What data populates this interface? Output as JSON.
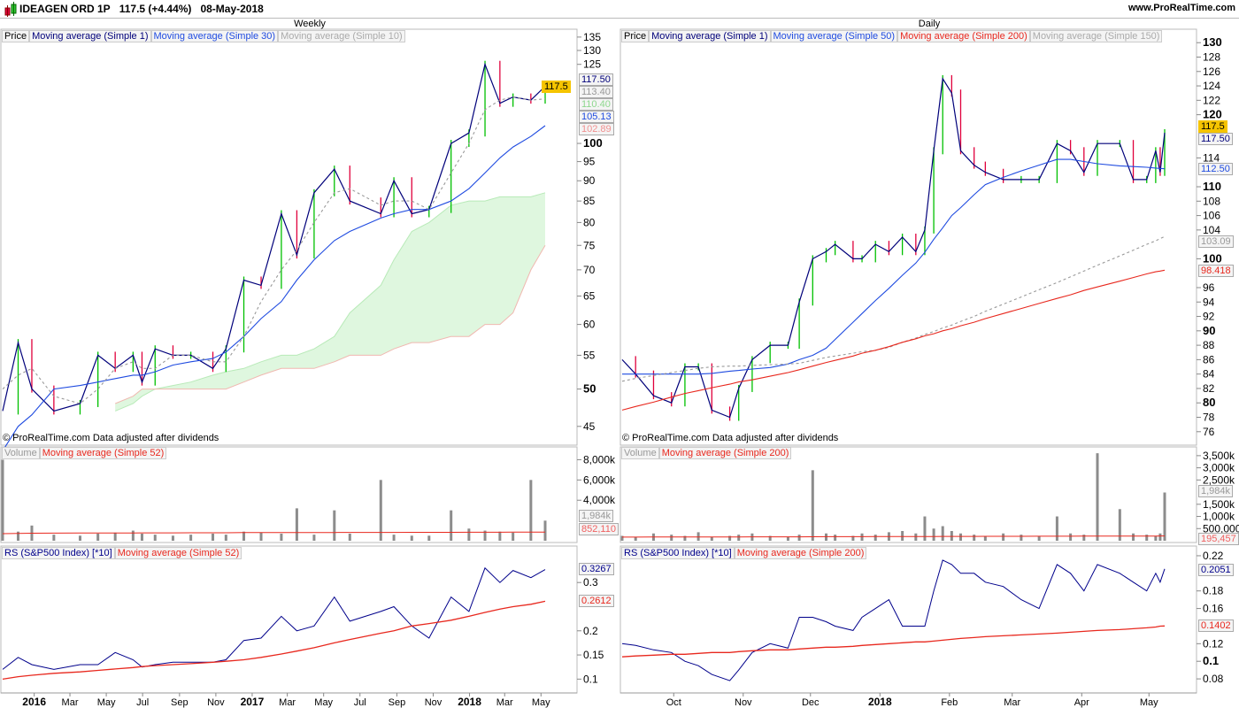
{
  "header": {
    "title": "IDEAGEN ORD 1P",
    "price": "117.5 (+4.44%)",
    "date": "08-May-2018",
    "site": "www.ProRealTime.com",
    "icon": "candlestick-icon"
  },
  "colors": {
    "up": "#00c000",
    "down": "#e0003c",
    "ma1": "#00007a",
    "ma_blue": "#1f4be0",
    "ma_gray": "#999999",
    "ma_red": "#e8281e",
    "cloud": "#dff7df",
    "volume": "#8c8c8c",
    "rs": "#00008b",
    "last": "#f5c400"
  },
  "copyright": "© ProRealTime.com  Data adjusted after dividends",
  "weekly": {
    "title": "Weekly",
    "legend": [
      "Price",
      "Moving average (Simple 1)",
      "Moving average (Simple 30)",
      "Moving average (Simple 10)"
    ],
    "vol_legend": [
      "Volume",
      "Moving average (Simple 52)"
    ],
    "rs_legend": [
      "RS (S&P500 Index) [*10]",
      "Moving average (Simple 52)"
    ],
    "tags": {
      "last": "117.5",
      "ma1": "117.50",
      "ma10": "113.40",
      "cloud_a": "110.40",
      "ma30": "105.13",
      "cloud_b": "102.89",
      "vol": "1,984k",
      "vol_ma": "852,110",
      "rs": "0.3267",
      "rs_ma": "0.2612"
    },
    "price_ticks": [
      "135",
      "130",
      "125",
      "100",
      "95",
      "90",
      "85",
      "80",
      "75",
      "70",
      "65",
      "60",
      "55",
      "50",
      "45"
    ],
    "vol_ticks": [
      "8,000k",
      "6,000k",
      "4,000k"
    ],
    "rs_ticks": [
      "0.3",
      "0.2",
      "0.15",
      "0.1"
    ],
    "x_ticks": [
      [
        "2016-01-01",
        "2016"
      ],
      [
        "2016-03-01",
        "Mar"
      ],
      [
        "2016-05-01",
        "May"
      ],
      [
        "2016-07-01",
        "Jul"
      ],
      [
        "2016-09-01",
        "Sep"
      ],
      [
        "2016-11-01",
        "Nov"
      ],
      [
        "2017-01-01",
        "2017"
      ],
      [
        "2017-03-01",
        "Mar"
      ],
      [
        "2017-05-01",
        "May"
      ],
      [
        "2017-07-01",
        "Jul"
      ],
      [
        "2017-09-01",
        "Sep"
      ],
      [
        "2017-11-01",
        "Nov"
      ],
      [
        "2018-01-01",
        "2018"
      ],
      [
        "2018-03-01",
        "Mar"
      ],
      [
        "2018-05-01",
        "May"
      ]
    ]
  },
  "daily": {
    "title": "Daily",
    "legend": [
      "Price",
      "Moving average (Simple 1)",
      "Moving average (Simple 50)",
      "Moving average (Simple 200)",
      "Moving average (Simple 150)"
    ],
    "vol_legend": [
      "Volume",
      "Moving average (Simple 200)"
    ],
    "rs_legend": [
      "RS (S&P500 Index) [*10]",
      "Moving average (Simple 200)"
    ],
    "tags": {
      "last": "117.5",
      "ma1": "117.50",
      "ma50": "112.50",
      "ma150": "103.09",
      "ma200": "98.418",
      "vol": "1,984k",
      "vol_ma": "195,457",
      "rs": "0.2051",
      "rs_ma": "0.1402"
    },
    "price_ticks": [
      "130",
      "128",
      "126",
      "124",
      "122",
      "120",
      "114",
      "110",
      "108",
      "106",
      "104",
      "100",
      "96",
      "94",
      "92",
      "90",
      "88",
      "86",
      "84",
      "82",
      "80",
      "78",
      "76"
    ],
    "vol_ticks": [
      "3,500k",
      "3,000k",
      "2,500k",
      "1,500k",
      "1,000k",
      "500,000"
    ],
    "rs_ticks": [
      "0.22",
      "0.18",
      "0.16",
      "0.12",
      "0.1",
      "0.08"
    ],
    "x_ticks": [
      [
        "2017-10-01",
        "Oct"
      ],
      [
        "2017-11-01",
        "Nov"
      ],
      [
        "2017-12-01",
        "Dec"
      ],
      [
        "2018-01-01",
        "2018"
      ],
      [
        "2018-02-01",
        "Feb"
      ],
      [
        "2018-03-01",
        "Mar"
      ],
      [
        "2018-04-01",
        "Apr"
      ],
      [
        "2018-05-01",
        "May"
      ]
    ]
  },
  "chart_data": [
    {
      "type": "line",
      "title": "Weekly",
      "price_scale": "log",
      "ylim": [
        43,
        137
      ],
      "x": [
        "2015-11-09",
        "2015-12-05",
        "2015-12-28",
        "2016-02-03",
        "2016-03-18",
        "2016-04-17",
        "2016-05-16",
        "2016-06-15",
        "2016-06-30",
        "2016-07-22",
        "2016-08-21",
        "2016-09-20",
        "2016-10-27",
        "2016-11-18",
        "2016-12-18",
        "2017-01-16",
        "2017-02-19",
        "2017-03-17",
        "2017-04-15",
        "2017-05-19",
        "2017-06-14",
        "2017-08-05",
        "2017-08-27",
        "2017-09-26",
        "2017-10-25",
        "2017-12-01",
        "2017-12-31",
        "2018-01-27",
        "2018-02-21",
        "2018-03-15",
        "2018-04-14",
        "2018-05-08"
      ],
      "series": [
        {
          "name": "Moving average (Simple 1)",
          "values": [
            47,
            57,
            50,
            47,
            48,
            55,
            53,
            55,
            51,
            56,
            55,
            55,
            53,
            56,
            68,
            67,
            82,
            73,
            87,
            93,
            85,
            82,
            90,
            82,
            83,
            100,
            103,
            125,
            112,
            114,
            113,
            117.5
          ]
        },
        {
          "name": "Moving average (Simple 30)",
          "values": [
            42,
            45,
            46.5,
            50,
            50.5,
            51,
            51.5,
            52,
            52,
            52.5,
            53.5,
            54,
            54.5,
            55.5,
            58,
            61,
            64,
            68,
            72,
            76,
            78,
            81,
            82,
            83,
            83,
            85,
            88,
            92,
            96,
            99,
            102,
            105.13
          ]
        },
        {
          "name": "Moving average (Simple 10)",
          "values": [
            50,
            52,
            53,
            49,
            48,
            50,
            53,
            54,
            53,
            53,
            55,
            55,
            54,
            54,
            58,
            64,
            70,
            74,
            80,
            87,
            88,
            84,
            85,
            85,
            83,
            92,
            100,
            110,
            113,
            114,
            113,
            113.4
          ]
        }
      ],
      "cloud_upper": [
        null,
        null,
        null,
        null,
        null,
        null,
        47,
        48,
        49,
        50,
        50.5,
        51,
        52,
        52.5,
        53,
        54,
        55,
        55,
        56,
        58,
        62,
        67,
        72,
        78,
        80,
        84,
        85,
        85,
        86,
        86,
        86,
        87
      ],
      "cloud_lower": [
        null,
        null,
        null,
        null,
        null,
        null,
        48,
        49,
        50,
        50,
        50,
        50,
        50,
        50,
        51,
        52,
        53,
        53,
        53,
        54,
        55,
        55,
        56,
        57,
        57,
        58,
        58,
        60,
        60,
        62,
        70,
        75
      ],
      "volume": {
        "ylim": [
          0,
          9000000
        ],
        "values": [
          8000000,
          900000,
          1500000,
          600000,
          500000,
          700000,
          800000,
          1000000,
          700000,
          600000,
          500000,
          600000,
          700000,
          600000,
          900000,
          800000,
          700000,
          3200000,
          600000,
          3000000,
          700000,
          6000000,
          600000,
          500000,
          500000,
          3000000,
          1200000,
          1000000,
          900000,
          800000,
          6000000,
          1984000
        ],
        "ma": [
          700000,
          720000,
          740000,
          750000,
          760000,
          760000,
          770000,
          770000,
          780000,
          780000,
          780000,
          790000,
          790000,
          790000,
          800000,
          800000,
          800000,
          810000,
          810000,
          810000,
          820000,
          820000,
          820000,
          830000,
          830000,
          830000,
          840000,
          840000,
          840000,
          850000,
          850000,
          852110
        ]
      },
      "rs": {
        "ylim": [
          0.075,
          0.37
        ],
        "values": [
          0.12,
          0.145,
          0.13,
          0.12,
          0.13,
          0.13,
          0.155,
          0.14,
          0.125,
          0.13,
          0.135,
          0.135,
          0.135,
          0.14,
          0.18,
          0.185,
          0.23,
          0.2,
          0.21,
          0.27,
          0.22,
          0.24,
          0.25,
          0.21,
          0.185,
          0.27,
          0.24,
          0.33,
          0.3,
          0.325,
          0.31,
          0.3267
        ],
        "ma": [
          0.1,
          0.105,
          0.108,
          0.112,
          0.115,
          0.118,
          0.121,
          0.124,
          0.126,
          0.128,
          0.13,
          0.132,
          0.135,
          0.137,
          0.14,
          0.145,
          0.152,
          0.158,
          0.165,
          0.175,
          0.182,
          0.195,
          0.2,
          0.21,
          0.215,
          0.222,
          0.23,
          0.238,
          0.245,
          0.25,
          0.255,
          0.2612
        ]
      }
    },
    {
      "type": "line",
      "title": "Daily",
      "price_scale": "linear",
      "ylim": [
        74.5,
        131.5
      ],
      "x": [
        "2017-09-08",
        "2017-09-14",
        "2017-09-22",
        "2017-09-30",
        "2017-10-06",
        "2017-10-12",
        "2017-10-18",
        "2017-10-26",
        "2017-10-30",
        "2017-11-05",
        "2017-11-13",
        "2017-11-21",
        "2017-11-26",
        "2017-12-02",
        "2017-12-08",
        "2017-12-12",
        "2017-12-20",
        "2017-12-24",
        "2017-12-30",
        "2018-01-05",
        "2018-01-11",
        "2018-01-17",
        "2018-01-21",
        "2018-01-25",
        "2018-01-29",
        "2018-02-02",
        "2018-02-06",
        "2018-02-12",
        "2018-02-17",
        "2018-02-25",
        "2018-03-05",
        "2018-03-13",
        "2018-03-21",
        "2018-03-27",
        "2018-04-02",
        "2018-04-08",
        "2018-04-18",
        "2018-04-24",
        "2018-04-30",
        "2018-05-04",
        "2018-05-06",
        "2018-05-08"
      ],
      "series": [
        {
          "name": "Moving average (Simple 1)",
          "values": [
            86,
            84,
            81,
            80,
            85,
            85,
            79,
            78,
            82,
            86,
            88,
            88,
            94,
            100,
            101,
            102,
            100,
            100,
            102,
            101,
            103,
            101,
            104,
            115,
            125,
            123,
            115,
            113,
            112,
            111,
            111,
            111,
            116,
            115,
            112,
            116,
            116,
            111,
            111,
            115,
            112,
            117.5
          ]
        },
        {
          "name": "Moving average (Simple 50)",
          "values": [
            84,
            84,
            84,
            84,
            84,
            84,
            84.1,
            84.4,
            84.5,
            84.7,
            84.9,
            85.4,
            86,
            86.6,
            87.6,
            88.8,
            91.2,
            92.4,
            94.2,
            95.9,
            97.7,
            99.4,
            100.9,
            102.7,
            104.3,
            106,
            107.1,
            108.9,
            110.3,
            111.3,
            112.2,
            113,
            113.8,
            113.8,
            113.5,
            113.2,
            112.9,
            112.8,
            112.7,
            112.6,
            112.55,
            112.5
          ]
        },
        {
          "name": "Moving average (Simple 150)",
          "values": [
            83,
            83.4,
            83.8,
            84.2,
            84.5,
            84.8,
            85,
            85.1,
            85.1,
            85.2,
            85.3,
            85.4,
            85.5,
            85.9,
            86.3,
            86.5,
            86.9,
            87.1,
            87.3,
            87.7,
            88.4,
            89,
            89.5,
            89.9,
            90.4,
            90.8,
            91.3,
            92,
            92.7,
            93.7,
            94.7,
            95.7,
            96.7,
            97.5,
            98.3,
            99.1,
            100.4,
            101.2,
            102,
            102.5,
            102.8,
            103.09
          ]
        },
        {
          "name": "Moving average (Simple 200)",
          "values": [
            79,
            79.5,
            80.1,
            80.8,
            81.3,
            81.7,
            82.1,
            82.6,
            82.9,
            83.2,
            83.7,
            84.2,
            84.6,
            85.1,
            85.6,
            85.9,
            86.5,
            86.9,
            87.3,
            87.8,
            88.4,
            88.9,
            89.3,
            89.6,
            90,
            90.3,
            90.7,
            91.2,
            91.7,
            92.4,
            93.1,
            93.8,
            94.5,
            95,
            95.6,
            96.1,
            96.9,
            97.4,
            97.9,
            98.2,
            98.3,
            98.42
          ]
        }
      ],
      "volume": {
        "ylim": [
          0,
          3750000
        ],
        "values": [
          200000,
          150000,
          300000,
          250000,
          200000,
          350000,
          150000,
          200000,
          250000,
          300000,
          200000,
          150000,
          250000,
          2900000,
          300000,
          250000,
          200000,
          300000,
          250000,
          350000,
          400000,
          300000,
          1000000,
          500000,
          600000,
          400000,
          300000,
          250000,
          200000,
          300000,
          250000,
          200000,
          1000000,
          300000,
          250000,
          3600000,
          1300000,
          300000,
          250000,
          200000,
          300000,
          1984000
        ],
        "ma": [
          150000,
          150000,
          152000,
          153000,
          154000,
          155000,
          156000,
          157000,
          158000,
          159000,
          160000,
          161000,
          162000,
          165000,
          166000,
          167000,
          168000,
          169000,
          170000,
          171000,
          172000,
          173000,
          175000,
          176000,
          177000,
          178000,
          179000,
          180000,
          181000,
          182000,
          183000,
          184000,
          186000,
          187000,
          188000,
          190000,
          191000,
          192000,
          193000,
          194000,
          195000,
          195457
        ]
      },
      "rs": {
        "ylim": [
          0.066,
          0.228
        ],
        "values": [
          0.12,
          0.118,
          0.113,
          0.11,
          0.1,
          0.095,
          0.085,
          0.078,
          0.09,
          0.11,
          0.12,
          0.115,
          0.15,
          0.15,
          0.145,
          0.14,
          0.135,
          0.15,
          0.16,
          0.17,
          0.14,
          0.14,
          0.14,
          0.18,
          0.215,
          0.21,
          0.2,
          0.2,
          0.19,
          0.185,
          0.17,
          0.16,
          0.21,
          0.2,
          0.18,
          0.21,
          0.2,
          0.19,
          0.18,
          0.2,
          0.19,
          0.2051
        ],
        "ma": [
          0.105,
          0.106,
          0.107,
          0.108,
          0.108,
          0.109,
          0.11,
          0.11,
          0.111,
          0.112,
          0.113,
          0.113,
          0.114,
          0.115,
          0.116,
          0.116,
          0.117,
          0.118,
          0.119,
          0.12,
          0.121,
          0.122,
          0.122,
          0.123,
          0.124,
          0.125,
          0.126,
          0.127,
          0.128,
          0.129,
          0.13,
          0.131,
          0.132,
          0.133,
          0.134,
          0.135,
          0.136,
          0.137,
          0.138,
          0.139,
          0.14,
          0.1402
        ]
      }
    }
  ]
}
